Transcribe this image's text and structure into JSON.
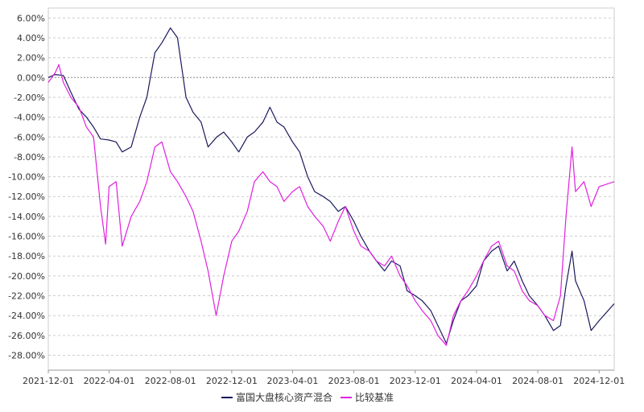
{
  "chart_data": {
    "type": "line",
    "title": "",
    "xlabel": "",
    "ylabel": "",
    "ylim": [
      -28,
      6
    ],
    "y_ticks": [
      6,
      4,
      2,
      0,
      -2,
      -4,
      -6,
      -8,
      -10,
      -12,
      -14,
      -16,
      -18,
      -20,
      -22,
      -24,
      -26,
      -28
    ],
    "y_tick_labels": [
      "6.00%",
      "4.00%",
      "2.00%",
      "0.00%",
      "-2.00%",
      "-4.00%",
      "-6.00%",
      "-8.00%",
      "-10.00%",
      "-12.00%",
      "-14.00%",
      "-16.00%",
      "-18.00%",
      "-20.00%",
      "-22.00%",
      "-24.00%",
      "-26.00%",
      "-28.00%"
    ],
    "x_range": [
      "2021-12-01",
      "2024-12-31"
    ],
    "x_ticks": [
      "2021-12-01",
      "2022-04-01",
      "2022-08-01",
      "2022-12-01",
      "2023-04-01",
      "2023-08-01",
      "2023-12-01",
      "2024-04-01",
      "2024-08-01",
      "2024-12-01"
    ],
    "grid": "horizontal-dashed",
    "legend_position": "bottom-center",
    "series": [
      {
        "name": "富国大盘核心资产混合",
        "color": "#1a1a5e",
        "points": [
          [
            "2021-12-01",
            0.0
          ],
          [
            "2021-12-15",
            0.3
          ],
          [
            "2021-12-31",
            0.2
          ],
          [
            "2022-01-15",
            -1.5
          ],
          [
            "2022-01-31",
            -3.2
          ],
          [
            "2022-02-15",
            -4.0
          ],
          [
            "2022-03-01",
            -5.0
          ],
          [
            "2022-03-15",
            -6.2
          ],
          [
            "2022-04-01",
            -6.3
          ],
          [
            "2022-04-15",
            -6.5
          ],
          [
            "2022-04-27",
            -7.5
          ],
          [
            "2022-05-15",
            -7.0
          ],
          [
            "2022-06-01",
            -4.0
          ],
          [
            "2022-06-15",
            -2.0
          ],
          [
            "2022-07-01",
            2.5
          ],
          [
            "2022-07-15",
            3.5
          ],
          [
            "2022-08-01",
            5.0
          ],
          [
            "2022-08-15",
            4.0
          ],
          [
            "2022-09-01",
            -2.0
          ],
          [
            "2022-09-15",
            -3.5
          ],
          [
            "2022-10-01",
            -4.5
          ],
          [
            "2022-10-15",
            -7.0
          ],
          [
            "2022-11-01",
            -6.0
          ],
          [
            "2022-11-15",
            -5.5
          ],
          [
            "2022-12-01",
            -6.5
          ],
          [
            "2022-12-15",
            -7.5
          ],
          [
            "2023-01-01",
            -6.0
          ],
          [
            "2023-01-15",
            -5.5
          ],
          [
            "2023-02-01",
            -4.5
          ],
          [
            "2023-02-15",
            -3.0
          ],
          [
            "2023-03-01",
            -4.5
          ],
          [
            "2023-03-15",
            -5.0
          ],
          [
            "2023-04-01",
            -6.5
          ],
          [
            "2023-04-15",
            -7.5
          ],
          [
            "2023-05-01",
            -10.0
          ],
          [
            "2023-05-15",
            -11.5
          ],
          [
            "2023-06-01",
            -12.0
          ],
          [
            "2023-06-15",
            -12.5
          ],
          [
            "2023-07-01",
            -13.5
          ],
          [
            "2023-07-15",
            -13.0
          ],
          [
            "2023-08-01",
            -14.5
          ],
          [
            "2023-08-15",
            -16.0
          ],
          [
            "2023-09-01",
            -17.5
          ],
          [
            "2023-09-15",
            -18.5
          ],
          [
            "2023-10-01",
            -19.5
          ],
          [
            "2023-10-15",
            -18.5
          ],
          [
            "2023-11-01",
            -19.0
          ],
          [
            "2023-11-15",
            -21.5
          ],
          [
            "2023-12-01",
            -22.0
          ],
          [
            "2023-12-15",
            -22.5
          ],
          [
            "2024-01-01",
            -23.5
          ],
          [
            "2024-01-15",
            -25.0
          ],
          [
            "2024-02-01",
            -26.8
          ],
          [
            "2024-02-15",
            -24.5
          ],
          [
            "2024-03-01",
            -22.5
          ],
          [
            "2024-03-15",
            -22.0
          ],
          [
            "2024-04-01",
            -21.0
          ],
          [
            "2024-04-15",
            -18.5
          ],
          [
            "2024-05-01",
            -17.5
          ],
          [
            "2024-05-15",
            -17.0
          ],
          [
            "2024-06-01",
            -19.5
          ],
          [
            "2024-06-15",
            -18.5
          ],
          [
            "2024-07-01",
            -20.5
          ],
          [
            "2024-07-15",
            -22.0
          ],
          [
            "2024-08-01",
            -23.0
          ],
          [
            "2024-08-15",
            -24.0
          ],
          [
            "2024-09-01",
            -25.5
          ],
          [
            "2024-09-15",
            -25.0
          ],
          [
            "2024-09-26",
            -21.0
          ],
          [
            "2024-10-08",
            -17.5
          ],
          [
            "2024-10-15",
            -20.5
          ],
          [
            "2024-11-01",
            -22.5
          ],
          [
            "2024-11-15",
            -25.5
          ],
          [
            "2024-12-01",
            -24.5
          ],
          [
            "2024-12-31",
            -22.8
          ]
        ]
      },
      {
        "name": "比较基准",
        "color": "#e020e0",
        "points": [
          [
            "2021-12-01",
            -0.5
          ],
          [
            "2021-12-15",
            0.5
          ],
          [
            "2021-12-22",
            1.3
          ],
          [
            "2021-12-31",
            -0.5
          ],
          [
            "2022-01-15",
            -2.0
          ],
          [
            "2022-01-31",
            -3.0
          ],
          [
            "2022-02-15",
            -5.0
          ],
          [
            "2022-03-01",
            -6.0
          ],
          [
            "2022-03-15",
            -13.0
          ],
          [
            "2022-03-25",
            -16.8
          ],
          [
            "2022-04-01",
            -11.0
          ],
          [
            "2022-04-15",
            -10.5
          ],
          [
            "2022-04-27",
            -17.0
          ],
          [
            "2022-05-15",
            -14.0
          ],
          [
            "2022-06-01",
            -12.5
          ],
          [
            "2022-06-15",
            -10.5
          ],
          [
            "2022-07-01",
            -7.0
          ],
          [
            "2022-07-15",
            -6.5
          ],
          [
            "2022-08-01",
            -9.5
          ],
          [
            "2022-08-15",
            -10.5
          ],
          [
            "2022-09-01",
            -12.0
          ],
          [
            "2022-09-15",
            -13.5
          ],
          [
            "2022-10-01",
            -16.5
          ],
          [
            "2022-10-15",
            -19.5
          ],
          [
            "2022-10-31",
            -24.0
          ],
          [
            "2022-11-15",
            -20.0
          ],
          [
            "2022-12-01",
            -16.5
          ],
          [
            "2022-12-15",
            -15.5
          ],
          [
            "2023-01-01",
            -13.5
          ],
          [
            "2023-01-15",
            -10.5
          ],
          [
            "2023-02-01",
            -9.5
          ],
          [
            "2023-02-15",
            -10.5
          ],
          [
            "2023-03-01",
            -11.0
          ],
          [
            "2023-03-15",
            -12.5
          ],
          [
            "2023-04-01",
            -11.5
          ],
          [
            "2023-04-15",
            -11.0
          ],
          [
            "2023-05-01",
            -13.0
          ],
          [
            "2023-05-15",
            -14.0
          ],
          [
            "2023-06-01",
            -15.0
          ],
          [
            "2023-06-15",
            -16.5
          ],
          [
            "2023-07-01",
            -14.5
          ],
          [
            "2023-07-15",
            -13.0
          ],
          [
            "2023-08-01",
            -15.5
          ],
          [
            "2023-08-15",
            -17.0
          ],
          [
            "2023-09-01",
            -17.5
          ],
          [
            "2023-09-15",
            -18.5
          ],
          [
            "2023-10-01",
            -19.0
          ],
          [
            "2023-10-15",
            -18.0
          ],
          [
            "2023-11-01",
            -20.0
          ],
          [
            "2023-11-15",
            -21.0
          ],
          [
            "2023-12-01",
            -22.5
          ],
          [
            "2023-12-15",
            -23.5
          ],
          [
            "2024-01-01",
            -24.5
          ],
          [
            "2024-01-15",
            -26.0
          ],
          [
            "2024-02-01",
            -27.0
          ],
          [
            "2024-02-15",
            -24.0
          ],
          [
            "2024-03-01",
            -22.5
          ],
          [
            "2024-03-15",
            -21.5
          ],
          [
            "2024-04-01",
            -20.0
          ],
          [
            "2024-04-15",
            -18.5
          ],
          [
            "2024-05-01",
            -17.0
          ],
          [
            "2024-05-15",
            -16.5
          ],
          [
            "2024-06-01",
            -19.0
          ],
          [
            "2024-06-15",
            -19.5
          ],
          [
            "2024-07-01",
            -21.5
          ],
          [
            "2024-07-15",
            -22.5
          ],
          [
            "2024-08-01",
            -23.0
          ],
          [
            "2024-08-15",
            -24.0
          ],
          [
            "2024-09-01",
            -24.5
          ],
          [
            "2024-09-15",
            -22.0
          ],
          [
            "2024-09-26",
            -14.0
          ],
          [
            "2024-10-08",
            -7.0
          ],
          [
            "2024-10-15",
            -11.5
          ],
          [
            "2024-11-01",
            -10.5
          ],
          [
            "2024-11-15",
            -13.0
          ],
          [
            "2024-12-01",
            -11.0
          ],
          [
            "2024-12-31",
            -10.5
          ]
        ]
      }
    ]
  }
}
